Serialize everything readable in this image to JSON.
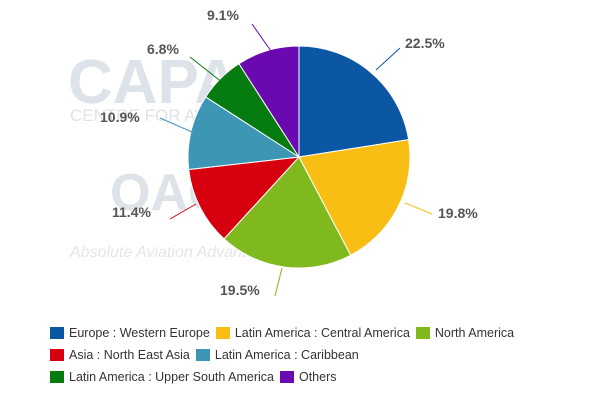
{
  "watermark": {
    "logo_text": "CAPA",
    "logo_subtext": "CENTRE FOR AVIATION",
    "oag_text": "OAG",
    "oag_tagline": "Absolute Aviation Advantage"
  },
  "chart_data": {
    "type": "pie",
    "title": "",
    "slices": [
      {
        "name": "Europe : Western Europe",
        "value": 22.5,
        "label": "22.5%",
        "color": "#0b57a4"
      },
      {
        "name": "Latin America : Central America",
        "value": 19.8,
        "label": "19.8%",
        "color": "#f8be14"
      },
      {
        "name": "North America",
        "value": 19.5,
        "label": "19.5%",
        "color": "#80b91e"
      },
      {
        "name": "Asia : North East Asia",
        "value": 11.4,
        "label": "11.4%",
        "color": "#d6000f"
      },
      {
        "name": "Latin America : Caribbean",
        "value": 10.9,
        "label": "10.9%",
        "color": "#3c96b4"
      },
      {
        "name": "Latin America : Upper South America",
        "value": 6.8,
        "label": "6.8%",
        "color": "#067b10"
      },
      {
        "name": "Others",
        "value": 9.1,
        "label": "9.1%",
        "color": "#6b09b0"
      }
    ],
    "legend_position": "bottom",
    "legend_rows": [
      [
        0,
        1,
        2
      ],
      [
        3,
        4
      ],
      [
        5,
        6
      ]
    ]
  }
}
